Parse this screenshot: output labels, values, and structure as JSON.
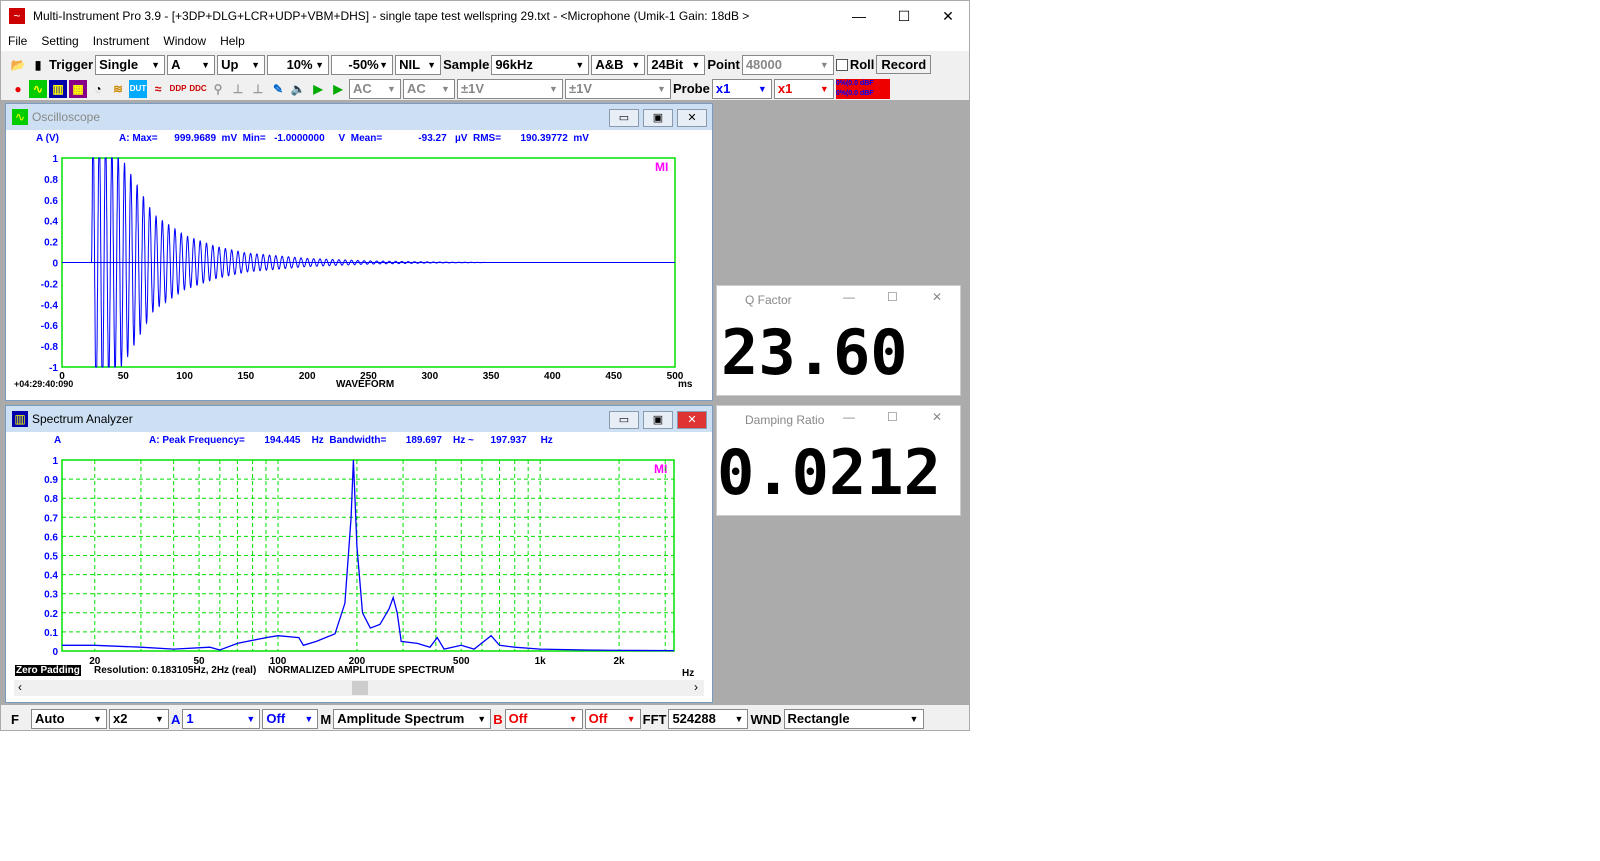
{
  "window": {
    "title": "Multi-Instrument Pro 3.9   -   [+3DP+DLG+LCR+UDP+VBM+DHS]   -   single tape test wellspring 29.txt   -   <Microphone (Umik-1  Gain: 18dB >"
  },
  "menu": [
    "File",
    "Setting",
    "Instrument",
    "Window",
    "Help"
  ],
  "toolbar1": {
    "trigger": "Trigger",
    "mode": "Single",
    "channel": "A",
    "edge": "Up",
    "level": "10%",
    "delay": "-50%",
    "nil": "NIL",
    "sample_label": "Sample",
    "sample": "96kHz",
    "ab": "A&B",
    "bits": "24Bit",
    "point_label": "Point",
    "point": "48000",
    "roll": "Roll",
    "record": "Record"
  },
  "toolbar2": {
    "coupling_a": "AC",
    "coupling_b": "AC",
    "range_a": "±1V",
    "range_b": "±1V",
    "probe_label": "Probe",
    "probe_a": "x1",
    "probe_b": "x1",
    "level_a": "0%(0.0 dBF",
    "level_b": "0%(0.0 dBF"
  },
  "oscilloscope": {
    "title": "Oscilloscope",
    "axis_label": "A (V)",
    "stats": "A: Max=      999.9689  mV  Min=   -1.0000000     V  Mean=             -93.27   µV  RMS=       190.39772  mV",
    "timestamp": "+04:29:40:090",
    "xlabel": "WAVEFORM",
    "xunit": "ms",
    "logo": "MI"
  },
  "spectrum": {
    "title": "Spectrum Analyzer",
    "axis_label": "A",
    "stats": "A: Peak Frequency=       194.445    Hz  Bandwidth=       189.697    Hz ~      197.937     Hz",
    "zero_padding": "Zero Padding",
    "resolution": "Resolution: 0.183105Hz, 2Hz (real)",
    "xlabel": "NORMALIZED AMPLITUDE SPECTRUM",
    "xunit": "Hz",
    "logo": "MI"
  },
  "q_factor": {
    "title": "Q Factor",
    "value": "23.60"
  },
  "damping": {
    "title": "Damping Ratio",
    "value": "0.0212"
  },
  "bottom": {
    "f": "F",
    "f_mode": "Auto",
    "mult": "x2",
    "a": "A",
    "avg": "1",
    "a_off": "Off",
    "m": "M",
    "m_mode": "Amplitude Spectrum",
    "b": "B",
    "b_off": "Off",
    "b_off2": "Off",
    "fft_label": "FFT",
    "fft": "524288",
    "wnd_label": "WND",
    "wnd": "Rectangle"
  },
  "colors": {
    "grid": "#00e000",
    "trace": "#0000ff",
    "stat_text": "#0000ff",
    "logo": "#ff00ff"
  },
  "chart_data": [
    {
      "type": "line",
      "title": "WAVEFORM",
      "xunit": "ms",
      "ylabel": "A (V)",
      "xlim": [
        0,
        500
      ],
      "ylim": [
        -1,
        1
      ],
      "xticks": [
        0,
        50,
        100,
        150,
        200,
        250,
        300,
        350,
        400,
        450,
        500
      ],
      "yticks": [
        "1",
        "0.8",
        "0.6",
        "0.4",
        "0.2",
        "0",
        "-0.2",
        "-0.4",
        "-0.6",
        "-0.8",
        "-1"
      ],
      "grid": true,
      "frequency_hz": 194.445,
      "envelope": [
        [
          0,
          0
        ],
        [
          24,
          0
        ],
        [
          25,
          1
        ],
        [
          50,
          0.75
        ],
        [
          75,
          0.35
        ],
        [
          100,
          0.2
        ],
        [
          125,
          0.12
        ],
        [
          150,
          0.07
        ],
        [
          200,
          0.03
        ],
        [
          250,
          0.012
        ],
        [
          300,
          0.004
        ],
        [
          350,
          0
        ],
        [
          500,
          0
        ]
      ]
    },
    {
      "type": "line",
      "title": "NORMALIZED AMPLITUDE SPECTRUM",
      "xunit": "Hz",
      "xscale": "log",
      "xlim": [
        15,
        3240
      ],
      "ylim": [
        0,
        1
      ],
      "xticks": [
        "20",
        "50",
        "100",
        "200",
        "500",
        "1k",
        "2k"
      ],
      "xtick_values": [
        20,
        50,
        100,
        200,
        500,
        1000,
        2000
      ],
      "yticks": [
        "1",
        "0.9",
        "0.8",
        "0.7",
        "0.6",
        "0.5",
        "0.4",
        "0.3",
        "0.2",
        "0.1",
        "0"
      ],
      "grid": true,
      "points": [
        [
          15,
          0.03
        ],
        [
          20,
          0.03
        ],
        [
          30,
          0.02
        ],
        [
          40,
          0.01
        ],
        [
          55,
          0.02
        ],
        [
          60,
          0.005
        ],
        [
          70,
          0.04
        ],
        [
          90,
          0.07
        ],
        [
          100,
          0.08
        ],
        [
          120,
          0.07
        ],
        [
          125,
          0.03
        ],
        [
          140,
          0.05
        ],
        [
          165,
          0.09
        ],
        [
          180,
          0.25
        ],
        [
          190,
          0.7
        ],
        [
          194,
          1.0
        ],
        [
          200,
          0.55
        ],
        [
          210,
          0.2
        ],
        [
          225,
          0.12
        ],
        [
          245,
          0.14
        ],
        [
          265,
          0.22
        ],
        [
          275,
          0.28
        ],
        [
          285,
          0.2
        ],
        [
          295,
          0.05
        ],
        [
          340,
          0.04
        ],
        [
          380,
          0.02
        ],
        [
          405,
          0.07
        ],
        [
          430,
          0.01
        ],
        [
          500,
          0.03
        ],
        [
          560,
          0.01
        ],
        [
          650,
          0.08
        ],
        [
          700,
          0.03
        ],
        [
          800,
          0.02
        ],
        [
          1000,
          0.01
        ],
        [
          1500,
          0.005
        ],
        [
          2000,
          0.003
        ],
        [
          3240,
          0.002
        ]
      ]
    }
  ]
}
